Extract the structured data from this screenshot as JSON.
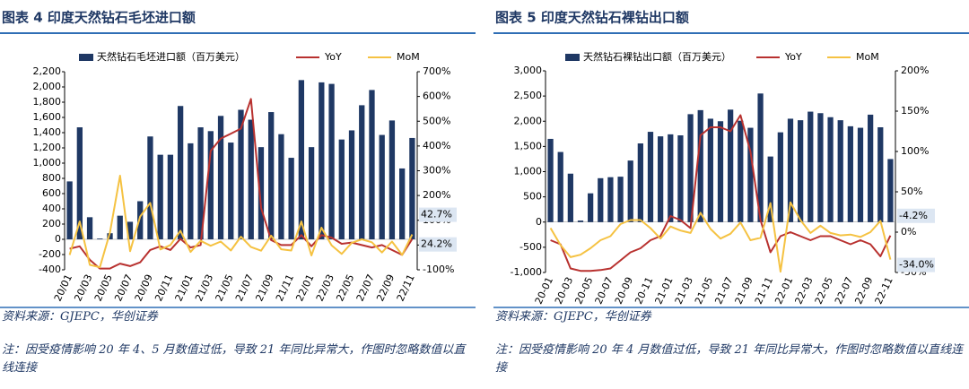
{
  "chart_data": [
    {
      "type": "bar_line",
      "title": "图表 4 印度天然钻石毛坯进口额",
      "categories": [
        "20/01",
        null,
        "20/03",
        null,
        "20/05",
        null,
        "20/07",
        null,
        "20/09",
        null,
        "20/11",
        null,
        "21/01",
        null,
        "21/03",
        null,
        "21/05",
        null,
        "21/07",
        null,
        "21/09",
        null,
        "21/11",
        null,
        "22/01",
        null,
        "22/03",
        null,
        "22/05",
        null,
        "22/07",
        null,
        "22/09",
        null,
        "22/11"
      ],
      "series": [
        {
          "name": "天然钻石毛坯进口额（百万美元）",
          "color": "#1f3864",
          "kind": "bar",
          "values": [
            760,
            1470,
            290,
            10,
            80,
            310,
            230,
            500,
            1350,
            1110,
            1110,
            1750,
            1260,
            1470,
            1420,
            1620,
            1270,
            1700,
            1570,
            1210,
            1670,
            1380,
            1070,
            2090,
            1210,
            2060,
            2040,
            1310,
            1430,
            1760,
            1960,
            1370,
            1560,
            930,
            1330
          ]
        },
        {
          "name": "YoY",
          "color": "#b8312f",
          "kind": "line",
          "axis": "y2",
          "values": [
            -15,
            -5,
            -60,
            -95,
            -95,
            -75,
            -85,
            -70,
            -20,
            -5,
            -20,
            25,
            -10,
            0,
            380,
            430,
            450,
            470,
            590,
            150,
            20,
            0,
            0,
            40,
            -5,
            40,
            30,
            5,
            10,
            0,
            -10,
            0,
            -20,
            -40,
            24.2
          ]
        },
        {
          "name": "MoM",
          "color": "#f5c242",
          "kind": "line",
          "axis": "y2",
          "values": [
            -40,
            95,
            -80,
            -90,
            50,
            280,
            -25,
            115,
            170,
            -18,
            0,
            58,
            -28,
            17,
            -3,
            14,
            -22,
            34,
            -8,
            -23,
            38,
            -17,
            -22,
            95,
            -42,
            70,
            -1,
            -36,
            9,
            23,
            11,
            -30,
            14,
            -40,
            42.7
          ]
        }
      ],
      "annotations": [
        {
          "text": "42.7%",
          "value": 42.7
        },
        {
          "text": "24.2%",
          "value": 24.2
        }
      ],
      "ylim": [
        -400,
        2200
      ],
      "yticks": [
        -400,
        -200,
        0,
        200,
        400,
        600,
        800,
        {
          "value": 1000,
          "label": "1,000"
        },
        {
          "value": 1200,
          "label": "1,200"
        },
        {
          "value": 1400,
          "label": "1,400"
        },
        {
          "value": 1600,
          "label": "1,600"
        },
        {
          "value": 1800,
          "label": "1,800"
        },
        {
          "value": 2000,
          "label": "2,000"
        },
        {
          "value": 2200,
          "label": "2,200"
        }
      ],
      "y2lim": [
        -100,
        700
      ],
      "y2ticks": [
        {
          "value": -100,
          "label": "-100%"
        },
        {
          "value": 0,
          "label": "0%"
        },
        {
          "value": 100,
          "label": "100%"
        },
        {
          "value": 200,
          "label": "200%"
        },
        {
          "value": 300,
          "label": "300%"
        },
        {
          "value": 400,
          "label": "400%"
        },
        {
          "value": 500,
          "label": "500%"
        },
        {
          "value": 600,
          "label": "600%"
        },
        {
          "value": 700,
          "label": "700%"
        }
      ],
      "source": "资料来源：GJEPC，华创证券",
      "note": "注：因受疫情影响 20 年 4、5 月数值过低，导致 21 年同比异常大，作图时忽略数值以直线连接"
    },
    {
      "type": "bar_line",
      "title": "图表 5 印度天然钻石裸钻出口额",
      "categories": [
        "20-01",
        null,
        "20-03",
        null,
        "20-05",
        null,
        "20-07",
        null,
        "20-09",
        null,
        "20-11",
        null,
        "21-01",
        null,
        "21-03",
        null,
        "21-05",
        null,
        "21-07",
        null,
        "21-09",
        null,
        "21-11",
        null,
        "22-01",
        null,
        "22-03",
        null,
        "22-05",
        null,
        "22-07",
        null,
        "22-09",
        null,
        "22-11"
      ],
      "series": [
        {
          "name": "天然钻石裸钻出口额（百万美元）",
          "color": "#1f3864",
          "kind": "bar",
          "values": [
            1650,
            1390,
            960,
            30,
            570,
            870,
            890,
            900,
            1220,
            1560,
            1790,
            1700,
            1740,
            1720,
            2140,
            2220,
            2050,
            2000,
            2230,
            2010,
            1870,
            2550,
            1300,
            1780,
            2050,
            2020,
            2190,
            2160,
            2080,
            2020,
            1900,
            1870,
            2130,
            1880,
            1250
          ]
        },
        {
          "name": "YoY",
          "color": "#b8312f",
          "kind": "line",
          "axis": "y2",
          "values": [
            -10,
            -15,
            -45,
            -48,
            -48,
            -47,
            -45,
            -35,
            -25,
            -20,
            -10,
            -5,
            20,
            15,
            5,
            120,
            130,
            130,
            125,
            145,
            100,
            15,
            -25,
            -5,
            0,
            -5,
            -10,
            -5,
            -5,
            -10,
            -15,
            -10,
            -15,
            -30,
            -4.2
          ]
        },
        {
          "name": "MoM",
          "color": "#f5c242",
          "kind": "line",
          "axis": "y2",
          "values": [
            5,
            -16,
            -31,
            -28,
            -20,
            -10,
            -5,
            10,
            15,
            15,
            5,
            -8,
            7,
            2,
            -1,
            24,
            4,
            -8,
            -2,
            12,
            -10,
            -7,
            36,
            -49,
            37,
            15,
            -1,
            8,
            -1,
            -4,
            -3,
            -6,
            0,
            14,
            -34.0
          ]
        }
      ],
      "annotations": [
        {
          "text": "-4.2%",
          "value": -4.2
        },
        {
          "text": "-34.0%",
          "value": -34.0
        }
      ],
      "ylim": [
        -1000,
        3000
      ],
      "yticks": [
        {
          "value": -1000,
          "label": "-1,000"
        },
        -500,
        0,
        500,
        {
          "value": 1000,
          "label": "1,000"
        },
        {
          "value": 1500,
          "label": "1,500"
        },
        {
          "value": 2000,
          "label": "2,000"
        },
        {
          "value": 2500,
          "label": "2,500"
        },
        {
          "value": 3000,
          "label": "3,000"
        }
      ],
      "y2lim": [
        -50,
        200
      ],
      "y2ticks": [
        {
          "value": -50,
          "label": "-50%"
        },
        {
          "value": 0,
          "label": "0%"
        },
        {
          "value": 50,
          "label": "50%"
        },
        {
          "value": 100,
          "label": "100%"
        },
        {
          "value": 150,
          "label": "150%"
        },
        {
          "value": 200,
          "label": "200%"
        }
      ],
      "source": "资料来源：GJEPC，华创证券",
      "note": "注：因受疫情影响 20 年 4 月数值过低，导致 21 年同比异常大，作图时忽略数值以直线连接"
    }
  ]
}
